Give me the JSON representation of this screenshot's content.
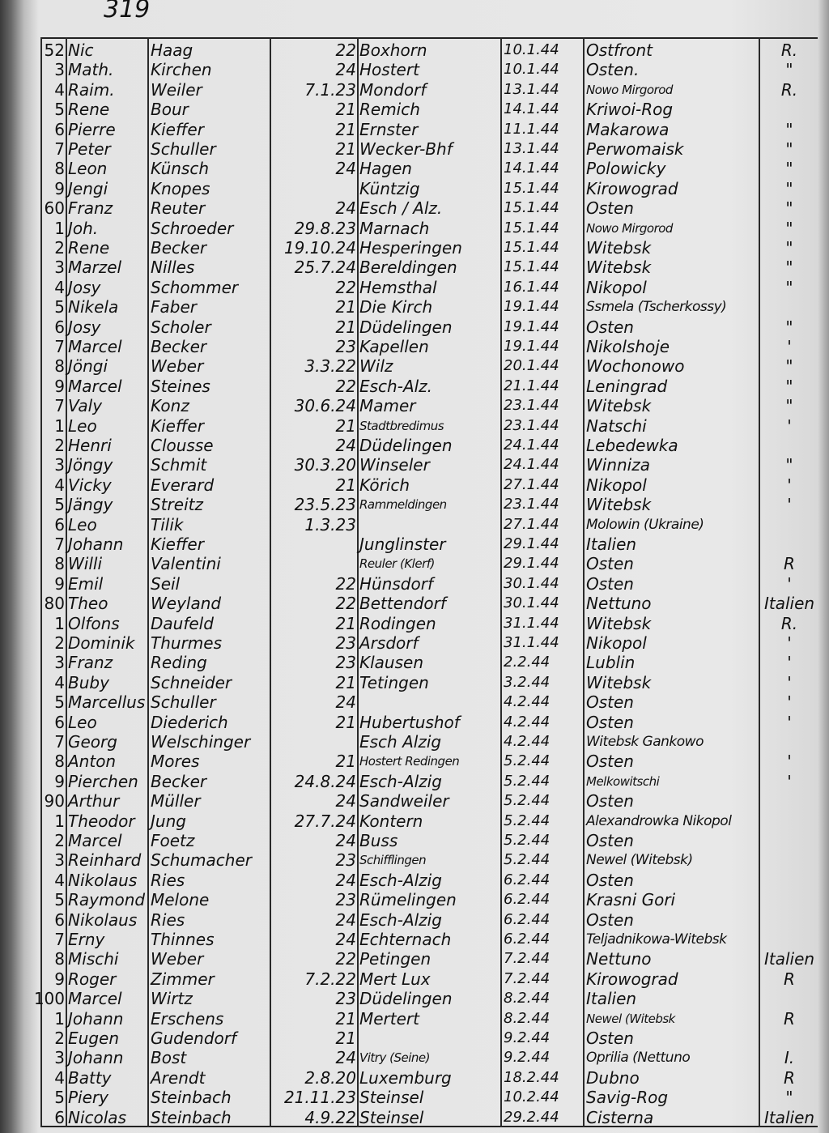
{
  "page_number": "319",
  "rows": [
    [
      "52",
      "Nic",
      "Haag",
      "22",
      "Boxhorn",
      "10.1.44",
      "Ostfront",
      "R."
    ],
    [
      "3",
      "Math.",
      "Kirchen",
      "24",
      "Hostert",
      "10.1.44",
      "Osten.",
      "\""
    ],
    [
      "4",
      "Raim.",
      "Weiler",
      "7.1.23",
      "Mondorf",
      "13.1.44",
      "Nowo Mirgorod",
      "R."
    ],
    [
      "5",
      "Rene",
      "Bour",
      "21",
      "Remich",
      "14.1.44",
      "Kriwoi-Rog",
      ""
    ],
    [
      "6",
      "Pierre",
      "Kieffer",
      "21",
      "Ernster",
      "11.1.44",
      "Makarowa",
      "\""
    ],
    [
      "7",
      "Peter",
      "Schuller",
      "21",
      "Wecker-Bhf",
      "13.1.44",
      "Perwomaisk",
      "\""
    ],
    [
      "8",
      "Leon",
      "Künsch",
      "24",
      "Hagen",
      "14.1.44",
      "Polowicky",
      "\""
    ],
    [
      "9",
      "Jengi",
      "Knopes",
      "",
      "Küntzig",
      "15.1.44",
      "Kirowograd",
      "\""
    ],
    [
      "60",
      "Franz",
      "Reuter",
      "24",
      "Esch / Alz.",
      "15.1.44",
      "Osten",
      "\""
    ],
    [
      "1",
      "Joh.",
      "Schroeder",
      "29.8.23",
      "Marnach",
      "15.1.44",
      "Nowo Mirgorod",
      "\""
    ],
    [
      "2",
      "Rene",
      "Becker",
      "19.10.24",
      "Hesperingen",
      "15.1.44",
      "Witebsk",
      "\""
    ],
    [
      "3",
      "Marzel",
      "Nilles",
      "25.7.24",
      "Bereldingen",
      "15.1.44",
      "Witebsk",
      "\""
    ],
    [
      "4",
      "Josy",
      "Schommer",
      "22",
      "Hemsthal",
      "16.1.44",
      "Nikopol",
      "\""
    ],
    [
      "5",
      "Nikela",
      "Faber",
      "21",
      "Die Kirch",
      "19.1.44",
      "Ssmela (Tscherkossy)",
      ""
    ],
    [
      "6",
      "Josy",
      "Scholer",
      "21",
      "Düdelingen",
      "19.1.44",
      "Osten",
      "\""
    ],
    [
      "7",
      "Marcel",
      "Becker",
      "23",
      "Kapellen",
      "19.1.44",
      "Nikolshoje",
      "'"
    ],
    [
      "8",
      "Jöngi",
      "Weber",
      "3.3.22",
      "Wilz",
      "20.1.44",
      "Wochonowo",
      "\""
    ],
    [
      "9",
      "Marcel",
      "Steines",
      "22",
      "Esch-Alz.",
      "21.1.44",
      "Leningrad",
      "\""
    ],
    [
      "7",
      "Valy",
      "Konz",
      "30.6.24",
      "Mamer",
      "23.1.44",
      "Witebsk",
      "\""
    ],
    [
      "1",
      "Leo",
      "Kieffer",
      "21",
      "Stadtbredimus",
      "23.1.44",
      "Natschi",
      "'"
    ],
    [
      "2",
      "Henri",
      "Clousse",
      "24",
      "Düdelingen",
      "24.1.44",
      "Lebedewka",
      ""
    ],
    [
      "3",
      "Jöngy",
      "Schmit",
      "30.3.20",
      "Winseler",
      "24.1.44",
      "Winniza",
      "\""
    ],
    [
      "4",
      "Vicky",
      "Everard",
      "21",
      "Körich",
      "27.1.44",
      "Nikopol",
      "'"
    ],
    [
      "5",
      "Jängy",
      "Streitz",
      "23.5.23",
      "Rammeldingen",
      "23.1.44",
      "Witebsk",
      "'"
    ],
    [
      "6",
      "Leo",
      "Tilik",
      "1.3.23",
      "",
      "27.1.44",
      "Molowin (Ukraine)",
      ""
    ],
    [
      "7",
      "Johann",
      "Kieffer",
      "",
      "Junglinster",
      "29.1.44",
      "Italien",
      ""
    ],
    [
      "8",
      "Willi",
      "Valentini",
      "",
      "Reuler (Klerf)",
      "29.1.44",
      "Osten",
      "R"
    ],
    [
      "9",
      "Emil",
      "Seil",
      "22",
      "Hünsdorf",
      "30.1.44",
      "Osten",
      "'"
    ],
    [
      "80",
      "Theo",
      "Weyland",
      "22",
      "Bettendorf",
      "30.1.44",
      "Nettuno",
      "Italien"
    ],
    [
      "1",
      "Olfons",
      "Daufeld",
      "21",
      "Rodingen",
      "31.1.44",
      "Witebsk",
      "R."
    ],
    [
      "2",
      "Dominik",
      "Thurmes",
      "23",
      "Arsdorf",
      "31.1.44",
      "Nikopol",
      "'"
    ],
    [
      "3",
      "Franz",
      "Reding",
      "23",
      "Klausen",
      "2.2.44",
      "Lublin",
      "'"
    ],
    [
      "4",
      "Buby",
      "Schneider",
      "21",
      "Tetingen",
      "3.2.44",
      "Witebsk",
      "'"
    ],
    [
      "5",
      "Marcellus",
      "Schuller",
      "24",
      "",
      "4.2.44",
      "Osten",
      "'"
    ],
    [
      "6",
      "Leo",
      "Diederich",
      "21",
      "Hubertushof",
      "4.2.44",
      "Osten",
      "'"
    ],
    [
      "7",
      "Georg",
      "Welschinger",
      "",
      "Esch Alzig",
      "4.2.44",
      "Witebsk Gankowo",
      ""
    ],
    [
      "8",
      "Anton",
      "Mores",
      "21",
      "Hostert Redingen",
      "5.2.44",
      "Osten",
      "'"
    ],
    [
      "9",
      "Pierchen",
      "Becker",
      "24.8.24",
      "Esch-Alzig",
      "5.2.44",
      "Melkowitschi",
      "'"
    ],
    [
      "90",
      "Arthur",
      "Müller",
      "24",
      "Sandweiler",
      "5.2.44",
      "Osten",
      ""
    ],
    [
      "1",
      "Theodor",
      "Jung",
      "27.7.24",
      "Kontern",
      "5.2.44",
      "Alexandrowka Nikopol",
      ""
    ],
    [
      "2",
      "Marcel",
      "Foetz",
      "24",
      "Buss",
      "5.2.44",
      "Osten",
      ""
    ],
    [
      "3",
      "Reinhard",
      "Schumacher",
      "23",
      "Schifflingen",
      "5.2.44",
      "Newel (Witebsk)",
      ""
    ],
    [
      "4",
      "Nikolaus",
      "Ries",
      "24",
      "Esch-Alzig",
      "6.2.44",
      "Osten",
      ""
    ],
    [
      "5",
      "Raymond",
      "Melone",
      "23",
      "Rümelingen",
      "6.2.44",
      "Krasni Gori",
      ""
    ],
    [
      "6",
      "Nikolaus",
      "Ries",
      "24",
      "Esch-Alzig",
      "6.2.44",
      "Osten",
      ""
    ],
    [
      "7",
      "Erny",
      "Thinnes",
      "24",
      "Echternach",
      "6.2.44",
      "Teljadnikowa-Witebsk",
      ""
    ],
    [
      "8",
      "Mischi",
      "Weber",
      "22",
      "Petingen",
      "7.2.44",
      "Nettuno",
      "Italien"
    ],
    [
      "9",
      "Roger",
      "Zimmer",
      "7.2.22",
      "Mert Lux",
      "7.2.44",
      "Kirowograd",
      "R"
    ],
    [
      "100",
      "Marcel",
      "Wirtz",
      "23",
      "Düdelingen",
      "8.2.44",
      "Italien",
      ""
    ],
    [
      "1",
      "Johann",
      "Erschens",
      "21",
      "Mertert",
      "8.2.44",
      "Newel (Witebsk",
      "R"
    ],
    [
      "2",
      "Eugen",
      "Gudendorf",
      "21",
      "",
      "9.2.44",
      "Osten",
      ""
    ],
    [
      "3",
      "Johann",
      "Bost",
      "24",
      "Vitry (Seine)",
      "9.2.44",
      "Oprilia (Nettuno",
      "I."
    ],
    [
      "4",
      "Batty",
      "Arendt",
      "2.8.20",
      "Luxemburg",
      "18.2.44",
      "Dubno",
      "R"
    ],
    [
      "5",
      "Piery",
      "Steinbach",
      "21.11.23",
      "Steinsel",
      "10.2.44",
      "Savig-Rog",
      "\""
    ],
    [
      "6",
      "Nicolas",
      "Steinbach",
      "4.9.22",
      "Steinsel",
      "29.2.44",
      "Cisterna",
      "Italien"
    ]
  ]
}
